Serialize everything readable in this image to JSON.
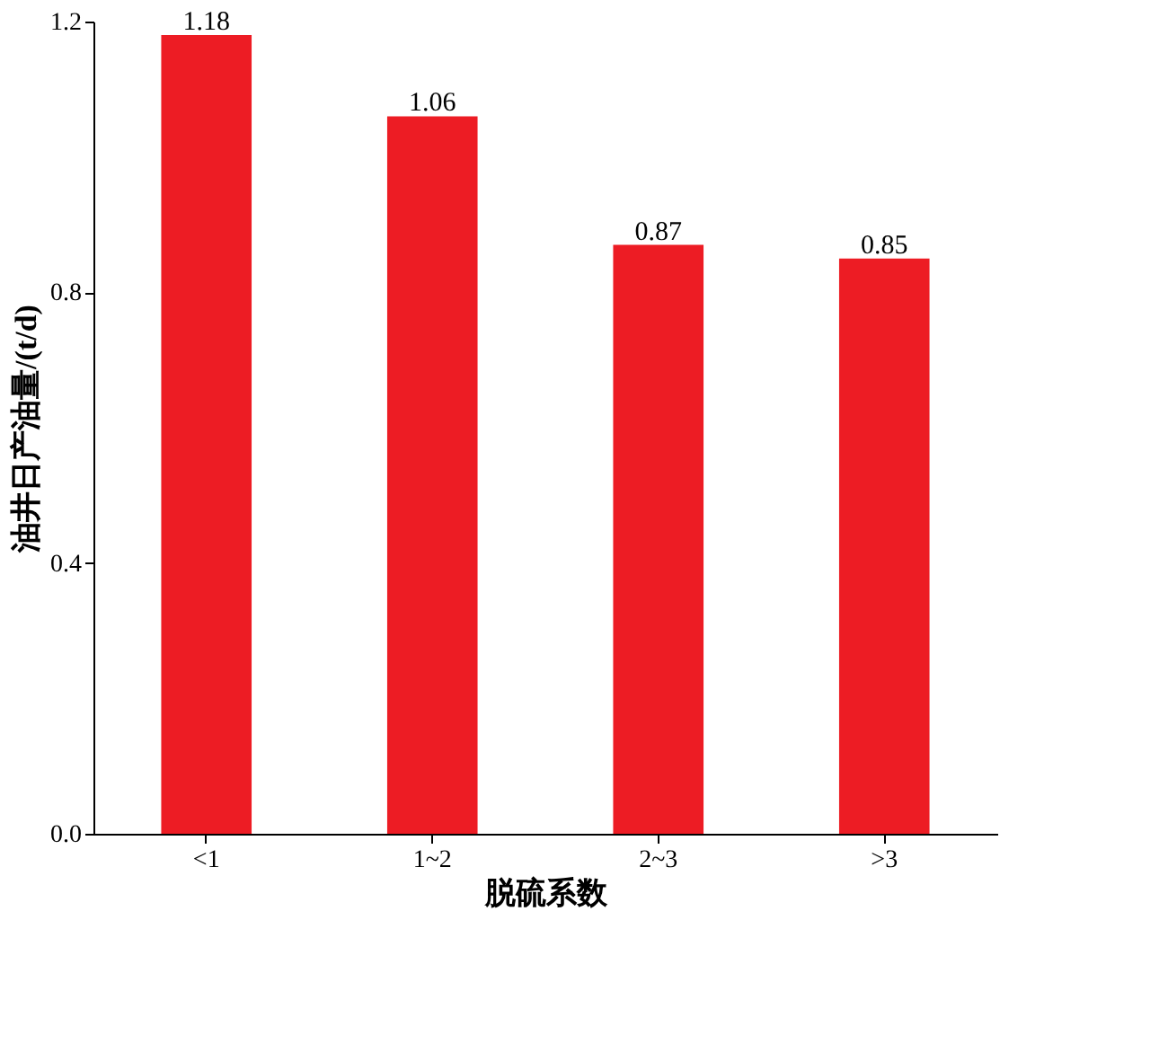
{
  "chart_data": {
    "type": "bar",
    "xlabel": "脱硫系数",
    "ylabel": "油井日产油量/(t/d)",
    "categories": [
      "<1",
      "1~2",
      "2~3",
      ">3"
    ],
    "values": [
      1.18,
      1.06,
      0.87,
      0.85
    ],
    "color": "#ed1c24",
    "ylim": [
      0,
      1.2
    ],
    "yticks": [
      {
        "value": 0,
        "label": "0.0"
      },
      0.4,
      0.8,
      1.2
    ],
    "data_labels": true,
    "grid": false
  }
}
